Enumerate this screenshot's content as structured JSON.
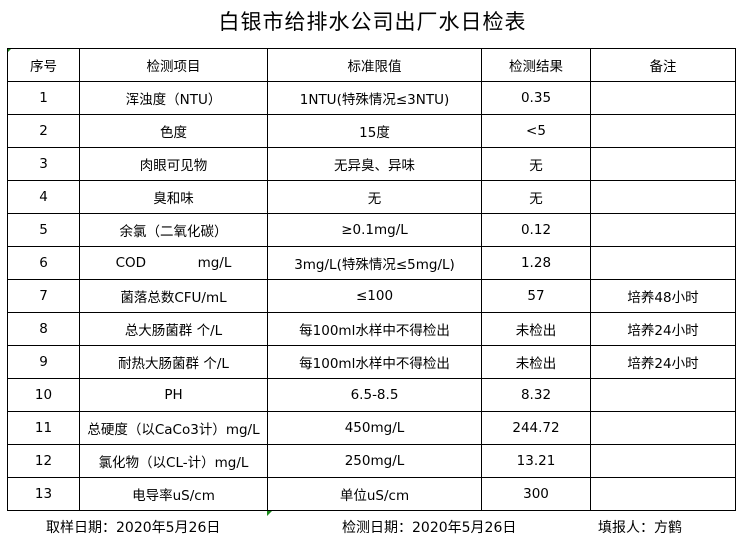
{
  "title": "白银市给排水公司出厂水日检表",
  "headers": [
    "序号",
    "检测项目",
    "标准限值",
    "检测结果",
    "备注"
  ],
  "rows": [
    [
      "1",
      "浑浊度（NTU）",
      "1NTU(特殊情况≤3NTU)",
      "0.35",
      ""
    ],
    [
      "2",
      "色度",
      "15度",
      "<5",
      ""
    ],
    [
      "3",
      "肉眼可见物",
      "无异臭、异味",
      "无",
      ""
    ],
    [
      "4",
      "臭和味",
      "无",
      "无",
      ""
    ],
    [
      "5",
      "余氯（二氧化碳）",
      "≥0.1mg/L",
      "0.12",
      ""
    ],
    [
      "6",
      "COD            mg/L",
      "3mg/L(特殊情况≤5mg/L)",
      "1.28",
      ""
    ],
    [
      "7",
      "菌落总数CFU/mL",
      "≤100",
      "57",
      "培养48小时"
    ],
    [
      "8",
      "总大肠菌群 个/L",
      "每100ml水样中不得检出",
      "未检出",
      "培养24小时"
    ],
    [
      "9",
      "耐热大肠菌群 个/L",
      "每100ml水样中不得检出",
      "未检出",
      "培养24小时"
    ],
    [
      "10",
      "PH",
      "6.5-8.5",
      "8.32",
      ""
    ],
    [
      "11",
      "总硬度（以CaCo3计）mg/L",
      "450mg/L",
      "244.72",
      ""
    ],
    [
      "12",
      "氯化物（以CL-计）mg/L",
      "250mg/L",
      "13.21",
      ""
    ],
    [
      "13",
      "电导率uS/cm",
      "单位uS/cm",
      "300",
      ""
    ]
  ],
  "footer": {
    "sample_date": "取样日期：2020年5月26日",
    "test_date": "检测日期：2020年5月26日",
    "reporter": "填报人：方鹤"
  }
}
